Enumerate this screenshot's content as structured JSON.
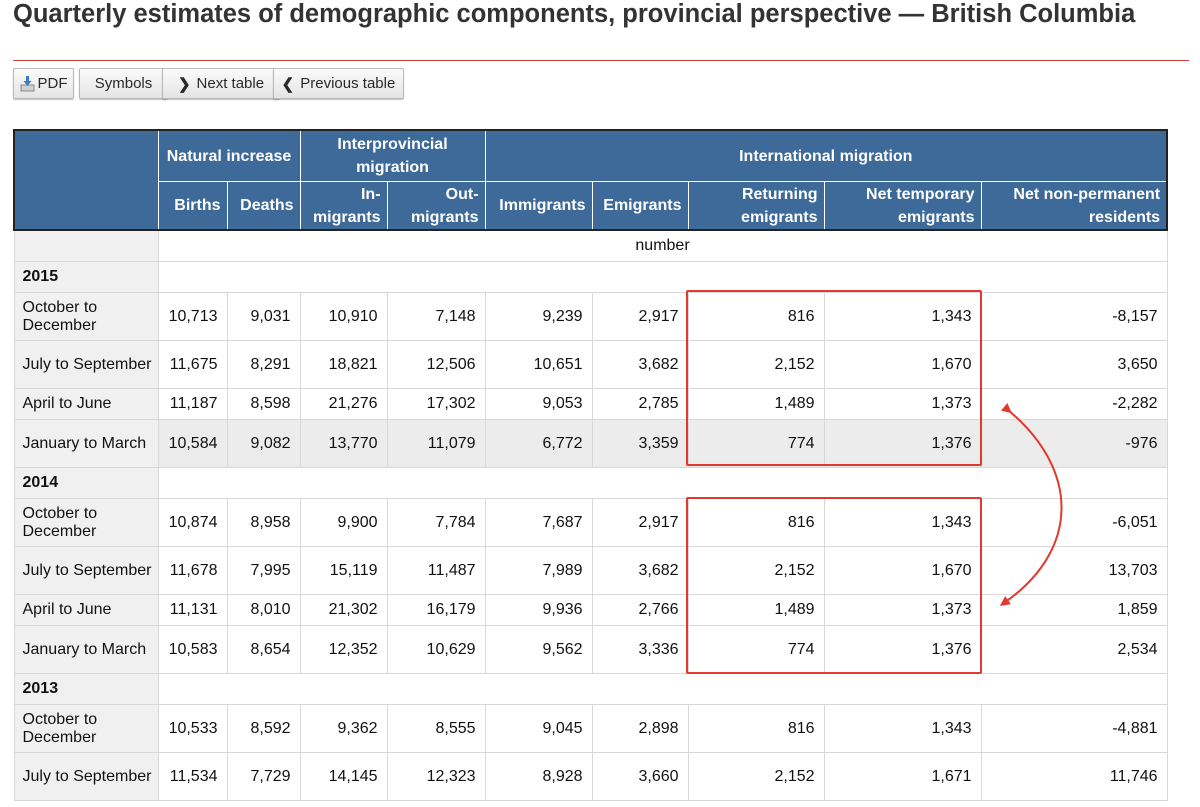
{
  "page": {
    "title": "Quarterly estimates of demographic components, provincial perspective — British Columbia"
  },
  "toolbar": {
    "pdf_label": "PDF",
    "symbols_label": "Symbols",
    "next_label": "Next table",
    "previous_label": "Previous table"
  },
  "table": {
    "group_headers": {
      "natural_increase": "Natural increase",
      "interprovincial": "Interprovincial migration",
      "international": "International migration"
    },
    "columns": [
      "Births",
      "Deaths",
      "In-migrants",
      "Out-migrants",
      "Immigrants",
      "Emigrants",
      "Returning emigrants",
      "Net temporary emigrants",
      "Net non-permanent residents"
    ],
    "units": "number",
    "years": [
      {
        "year": "2015",
        "rows": [
          {
            "label": "October to December",
            "values": [
              "10,713",
              "9,031",
              "10,910",
              "7,148",
              "9,239",
              "2,917",
              "816",
              "1,343",
              "-8,157"
            ]
          },
          {
            "label": "July to September",
            "values": [
              "11,675",
              "8,291",
              "18,821",
              "12,506",
              "10,651",
              "3,682",
              "2,152",
              "1,670",
              "3,650"
            ]
          },
          {
            "label": "April to June",
            "values": [
              "11,187",
              "8,598",
              "21,276",
              "17,302",
              "9,053",
              "2,785",
              "1,489",
              "1,373",
              "-2,282"
            ]
          },
          {
            "label": "January to March",
            "values": [
              "10,584",
              "9,082",
              "13,770",
              "11,079",
              "6,772",
              "3,359",
              "774",
              "1,376",
              "-976"
            ]
          }
        ]
      },
      {
        "year": "2014",
        "rows": [
          {
            "label": "October to December",
            "values": [
              "10,874",
              "8,958",
              "9,900",
              "7,784",
              "7,687",
              "2,917",
              "816",
              "1,343",
              "-6,051"
            ]
          },
          {
            "label": "July to September",
            "values": [
              "11,678",
              "7,995",
              "15,119",
              "11,487",
              "7,989",
              "3,682",
              "2,152",
              "1,670",
              "13,703"
            ]
          },
          {
            "label": "April to June",
            "values": [
              "11,131",
              "8,010",
              "21,302",
              "16,179",
              "9,936",
              "2,766",
              "1,489",
              "1,373",
              "1,859"
            ]
          },
          {
            "label": "January to March",
            "values": [
              "10,583",
              "8,654",
              "12,352",
              "10,629",
              "9,562",
              "3,336",
              "774",
              "1,376",
              "2,534"
            ]
          }
        ]
      },
      {
        "year": "2013",
        "rows": [
          {
            "label": "October to December",
            "values": [
              "10,533",
              "8,592",
              "9,362",
              "8,555",
              "9,045",
              "2,898",
              "816",
              "1,343",
              "-4,881"
            ]
          },
          {
            "label": "July to September",
            "values": [
              "11,534",
              "7,729",
              "14,145",
              "12,323",
              "8,928",
              "3,660",
              "2,152",
              "1,671",
              "11,746"
            ]
          }
        ]
      }
    ]
  },
  "annotation": {
    "color": "#e03a2e"
  },
  "colors": {
    "header_bg": "#3d6a98",
    "title_rule": "#c8413a"
  }
}
